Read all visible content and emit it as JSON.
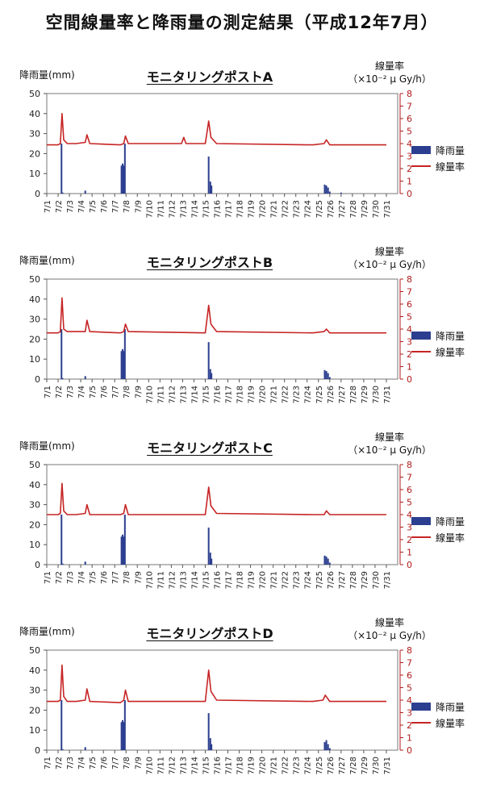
{
  "title": "空間線量率と降雨量の測定結果（平成12年7月）",
  "legend": {
    "bar": "降雨量",
    "line": "線量率"
  },
  "chart_data": [
    {
      "type": "bar+line",
      "title": "モニタリングポストA",
      "ylabel": "降雨量(mm)",
      "y2label": "線量率",
      "y2unit": "（×10⁻² μ Gy/h）",
      "ylim": [
        0,
        50
      ],
      "yticks": [
        0,
        10,
        20,
        30,
        40,
        50
      ],
      "y2lim": [
        0,
        8
      ],
      "y2ticks": [
        0,
        1,
        2,
        3,
        4,
        5,
        6,
        7,
        8
      ],
      "xticks": [
        "7/1",
        "7/2",
        "7/3",
        "7/4",
        "7/5",
        "7/6",
        "7/7",
        "7/8",
        "7/9",
        "7/10",
        "7/11",
        "7/12",
        "7/13",
        "7/14",
        "7/15",
        "7/16",
        "7/17",
        "7/18",
        "7/19",
        "7/20",
        "7/21",
        "7/22",
        "7/23",
        "7/24",
        "7/25",
        "7/26",
        "7/27",
        "7/28",
        "7/29",
        "7/30",
        "7/31"
      ],
      "rain": [
        [
          2.3,
          25
        ],
        [
          2.4,
          0.5
        ],
        [
          4.4,
          1.5
        ],
        [
          7.6,
          14
        ],
        [
          7.7,
          15
        ],
        [
          7.8,
          14
        ],
        [
          7.9,
          25
        ],
        [
          15.3,
          18.5
        ],
        [
          15.45,
          6
        ],
        [
          15.55,
          4
        ],
        [
          25.55,
          4.5
        ],
        [
          25.7,
          4
        ],
        [
          25.85,
          3
        ],
        [
          26.0,
          1
        ],
        [
          27.0,
          0.5
        ]
      ],
      "dose": [
        [
          1.0,
          3.9
        ],
        [
          2.0,
          3.9
        ],
        [
          2.2,
          4.0
        ],
        [
          2.35,
          6.4
        ],
        [
          2.5,
          4.3
        ],
        [
          2.8,
          4.0
        ],
        [
          3.6,
          4.0
        ],
        [
          4.4,
          4.1
        ],
        [
          4.55,
          4.7
        ],
        [
          4.8,
          4.0
        ],
        [
          7.5,
          3.9
        ],
        [
          7.8,
          4.0
        ],
        [
          7.95,
          4.6
        ],
        [
          8.2,
          4.0
        ],
        [
          12.9,
          4.0
        ],
        [
          13.1,
          4.5
        ],
        [
          13.3,
          4.0
        ],
        [
          15.0,
          4.0
        ],
        [
          15.3,
          5.8
        ],
        [
          15.5,
          4.5
        ],
        [
          16.0,
          4.0
        ],
        [
          24.5,
          3.9
        ],
        [
          25.5,
          4.0
        ],
        [
          25.7,
          4.3
        ],
        [
          26.0,
          3.9
        ],
        [
          31.0,
          3.9
        ]
      ]
    },
    {
      "type": "bar+line",
      "title": "モニタリングポストB",
      "ylabel": "降雨量(mm)",
      "y2label": "線量率",
      "y2unit": "（×10⁻² μ Gy/h）",
      "ylim": [
        0,
        50
      ],
      "yticks": [
        0,
        10,
        20,
        30,
        40,
        50
      ],
      "y2lim": [
        0,
        8
      ],
      "y2ticks": [
        0,
        1,
        2,
        3,
        4,
        5,
        6,
        7,
        8
      ],
      "xticks": [
        "7/1",
        "7/2",
        "7/3",
        "7/4",
        "7/5",
        "7/6",
        "7/7",
        "7/8",
        "7/9",
        "7/10",
        "7/11",
        "7/12",
        "7/13",
        "7/14",
        "7/15",
        "7/16",
        "7/17",
        "7/18",
        "7/19",
        "7/20",
        "7/21",
        "7/22",
        "7/23",
        "7/24",
        "7/25",
        "7/26",
        "7/27",
        "7/28",
        "7/29",
        "7/30",
        "7/31"
      ],
      "rain": [
        [
          2.3,
          25
        ],
        [
          2.4,
          0.5
        ],
        [
          4.4,
          1.5
        ],
        [
          7.6,
          14
        ],
        [
          7.7,
          15
        ],
        [
          7.8,
          14
        ],
        [
          7.9,
          25
        ],
        [
          15.3,
          18.5
        ],
        [
          15.45,
          5
        ],
        [
          15.55,
          3
        ],
        [
          25.55,
          4.5
        ],
        [
          25.7,
          4
        ],
        [
          25.85,
          3
        ],
        [
          26.0,
          1
        ]
      ],
      "dose": [
        [
          1.0,
          3.7
        ],
        [
          2.0,
          3.7
        ],
        [
          2.2,
          3.8
        ],
        [
          2.35,
          6.5
        ],
        [
          2.5,
          4.0
        ],
        [
          2.8,
          3.8
        ],
        [
          3.6,
          3.8
        ],
        [
          4.4,
          3.8
        ],
        [
          4.55,
          4.7
        ],
        [
          4.8,
          3.8
        ],
        [
          7.5,
          3.7
        ],
        [
          7.8,
          3.8
        ],
        [
          7.95,
          4.4
        ],
        [
          8.2,
          3.8
        ],
        [
          15.0,
          3.7
        ],
        [
          15.3,
          5.9
        ],
        [
          15.5,
          4.4
        ],
        [
          16.0,
          3.8
        ],
        [
          24.5,
          3.7
        ],
        [
          25.5,
          3.8
        ],
        [
          25.7,
          4.0
        ],
        [
          26.0,
          3.7
        ],
        [
          31.0,
          3.7
        ]
      ]
    },
    {
      "type": "bar+line",
      "title": "モニタリングポストC",
      "ylabel": "降雨量(mm)",
      "y2label": "線量率",
      "y2unit": "（×10⁻² μ Gy/h）",
      "ylim": [
        0,
        50
      ],
      "yticks": [
        0,
        10,
        20,
        30,
        40,
        50
      ],
      "y2lim": [
        0,
        8
      ],
      "y2ticks": [
        0,
        1,
        2,
        3,
        4,
        5,
        6,
        7,
        8
      ],
      "xticks": [
        "7/1",
        "7/2",
        "7/3",
        "7/4",
        "7/5",
        "7/6",
        "7/7",
        "7/8",
        "7/9",
        "7/10",
        "7/11",
        "7/12",
        "7/13",
        "7/14",
        "7/15",
        "7/16",
        "7/17",
        "7/18",
        "7/19",
        "7/20",
        "7/21",
        "7/22",
        "7/23",
        "7/24",
        "7/25",
        "7/26",
        "7/27",
        "7/28",
        "7/29",
        "7/30",
        "7/31"
      ],
      "rain": [
        [
          2.3,
          25
        ],
        [
          2.4,
          0.5
        ],
        [
          4.4,
          1.5
        ],
        [
          7.6,
          14
        ],
        [
          7.7,
          15
        ],
        [
          7.8,
          14
        ],
        [
          7.9,
          25
        ],
        [
          15.3,
          18.5
        ],
        [
          15.45,
          6
        ],
        [
          15.55,
          3
        ],
        [
          25.55,
          4.5
        ],
        [
          25.7,
          4
        ],
        [
          25.85,
          3
        ],
        [
          26.0,
          1
        ]
      ],
      "dose": [
        [
          1.0,
          4.0
        ],
        [
          2.0,
          4.0
        ],
        [
          2.2,
          4.1
        ],
        [
          2.35,
          6.5
        ],
        [
          2.5,
          4.3
        ],
        [
          2.8,
          4.0
        ],
        [
          3.6,
          4.0
        ],
        [
          4.4,
          4.1
        ],
        [
          4.55,
          4.8
        ],
        [
          4.8,
          4.0
        ],
        [
          7.5,
          4.0
        ],
        [
          7.8,
          4.1
        ],
        [
          7.95,
          4.8
        ],
        [
          8.2,
          4.0
        ],
        [
          15.0,
          4.0
        ],
        [
          15.3,
          6.2
        ],
        [
          15.5,
          4.7
        ],
        [
          16.0,
          4.1
        ],
        [
          24.5,
          4.0
        ],
        [
          25.5,
          4.0
        ],
        [
          25.7,
          4.3
        ],
        [
          26.0,
          4.0
        ],
        [
          31.0,
          4.0
        ]
      ]
    },
    {
      "type": "bar+line",
      "title": "モニタリングポストD",
      "ylabel": "降雨量(mm)",
      "y2label": "線量率",
      "y2unit": "（×10⁻² μ Gy/h）",
      "ylim": [
        0,
        50
      ],
      "yticks": [
        0,
        10,
        20,
        30,
        40,
        50
      ],
      "y2lim": [
        0,
        8
      ],
      "y2ticks": [
        0,
        1,
        2,
        3,
        4,
        5,
        6,
        7,
        8
      ],
      "xticks": [
        "7/1",
        "7/2",
        "7/3",
        "7/4",
        "7/5",
        "7/6",
        "7/7",
        "7/8",
        "7/9",
        "7/10",
        "7/11",
        "7/12",
        "7/13",
        "7/14",
        "7/15",
        "7/16",
        "7/17",
        "7/18",
        "7/19",
        "7/20",
        "7/21",
        "7/22",
        "7/23",
        "7/24",
        "7/25",
        "7/26",
        "7/27",
        "7/28",
        "7/29",
        "7/30",
        "7/31"
      ],
      "rain": [
        [
          2.3,
          25
        ],
        [
          2.4,
          0.5
        ],
        [
          4.4,
          1.5
        ],
        [
          7.6,
          14
        ],
        [
          7.7,
          15
        ],
        [
          7.8,
          14
        ],
        [
          7.9,
          25
        ],
        [
          15.3,
          18.5
        ],
        [
          15.45,
          6
        ],
        [
          15.55,
          3
        ],
        [
          25.55,
          4
        ],
        [
          25.7,
          5
        ],
        [
          25.85,
          3
        ],
        [
          26.0,
          1
        ]
      ],
      "dose": [
        [
          1.0,
          3.9
        ],
        [
          2.0,
          3.9
        ],
        [
          2.2,
          4.0
        ],
        [
          2.35,
          6.8
        ],
        [
          2.5,
          4.3
        ],
        [
          2.8,
          3.9
        ],
        [
          3.6,
          3.9
        ],
        [
          4.4,
          4.0
        ],
        [
          4.55,
          4.9
        ],
        [
          4.8,
          3.9
        ],
        [
          7.5,
          3.8
        ],
        [
          7.8,
          4.0
        ],
        [
          7.95,
          4.8
        ],
        [
          8.2,
          3.9
        ],
        [
          15.0,
          3.9
        ],
        [
          15.3,
          6.4
        ],
        [
          15.5,
          4.7
        ],
        [
          16.0,
          4.0
        ],
        [
          24.5,
          3.9
        ],
        [
          25.4,
          4.0
        ],
        [
          25.6,
          4.4
        ],
        [
          26.0,
          3.9
        ],
        [
          31.0,
          3.9
        ]
      ]
    }
  ]
}
